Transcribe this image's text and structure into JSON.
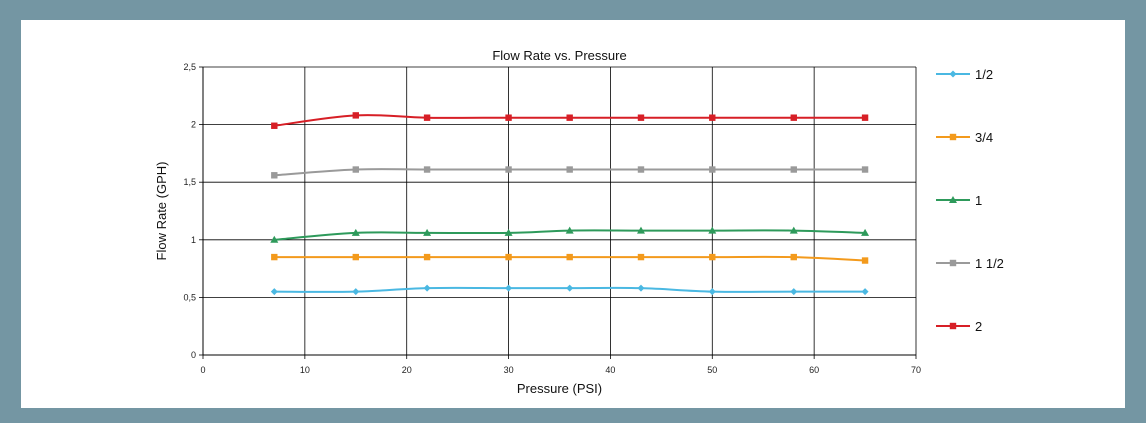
{
  "chart_data": {
    "type": "line",
    "title": "Flow Rate vs. Pressure",
    "xlabel": "Pressure (PSI)",
    "ylabel": "Flow Rate (GPH)",
    "xlim": [
      0,
      70
    ],
    "ylim": [
      0,
      2.5
    ],
    "x_ticks": [
      "0",
      "10",
      "20",
      "30",
      "40",
      "50",
      "60",
      "70"
    ],
    "y_ticks": [
      "0",
      "0,5",
      "1",
      "1,5",
      "2",
      "2,5"
    ],
    "grid": true,
    "legend_position": "right",
    "x": [
      7,
      15,
      22,
      30,
      36,
      43,
      50,
      58,
      65
    ],
    "series": [
      {
        "name": "1/2",
        "color": "#4ab8e2",
        "marker": "diamond",
        "values": [
          0.55,
          0.55,
          0.58,
          0.58,
          0.58,
          0.58,
          0.55,
          0.55,
          0.55
        ]
      },
      {
        "name": "3/4",
        "color": "#f39a1c",
        "marker": "square",
        "values": [
          0.85,
          0.85,
          0.85,
          0.85,
          0.85,
          0.85,
          0.85,
          0.85,
          0.82
        ]
      },
      {
        "name": "1",
        "color": "#2e9a5b",
        "marker": "triangle",
        "values": [
          1.0,
          1.06,
          1.06,
          1.06,
          1.08,
          1.08,
          1.08,
          1.08,
          1.06
        ]
      },
      {
        "name": "1 1/2",
        "color": "#9a9a9a",
        "marker": "square",
        "values": [
          1.56,
          1.61,
          1.61,
          1.61,
          1.61,
          1.61,
          1.61,
          1.61,
          1.61
        ]
      },
      {
        "name": "2",
        "color": "#d71f26",
        "marker": "square",
        "values": [
          1.99,
          2.08,
          2.06,
          2.06,
          2.06,
          2.06,
          2.06,
          2.06,
          2.06
        ]
      }
    ]
  }
}
